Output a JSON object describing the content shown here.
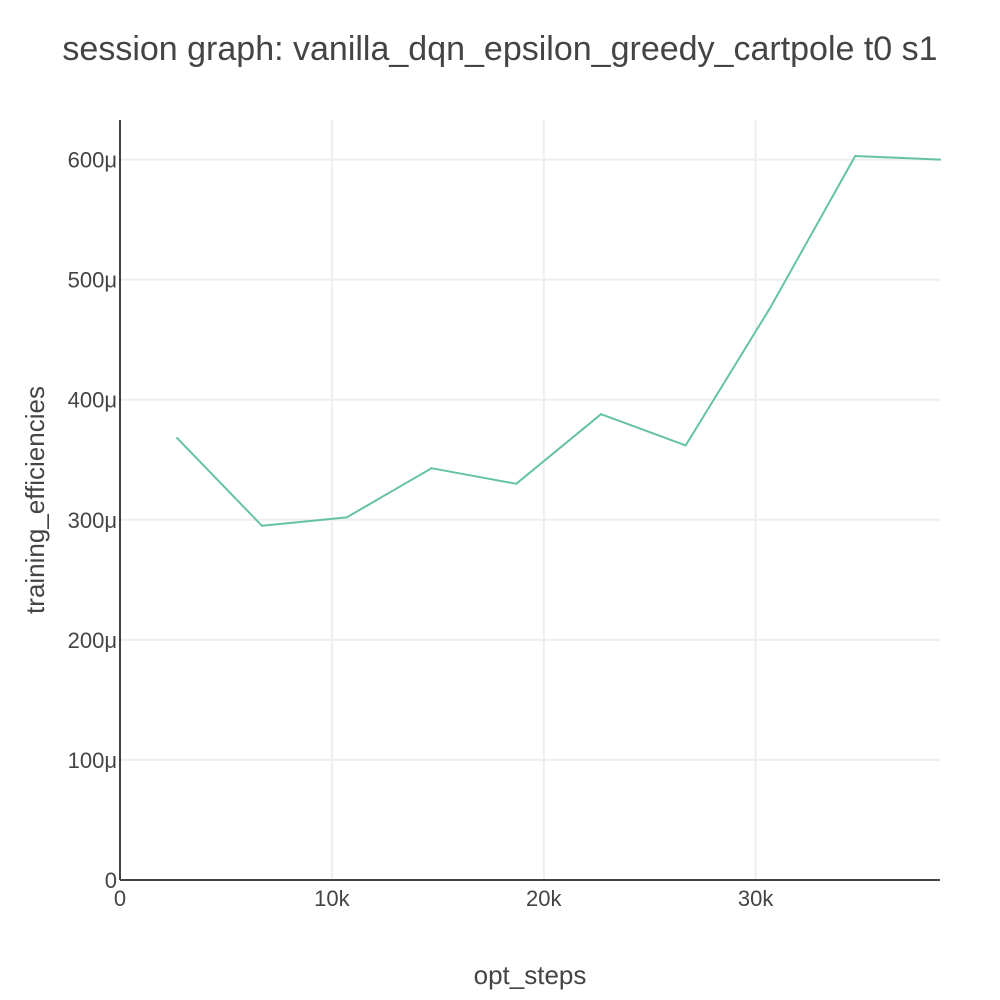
{
  "chart_data": {
    "type": "line",
    "title": "session graph: vanilla_dqn_epsilon_greedy_cartpole t0 s1",
    "xlabel": "opt_steps",
    "ylabel": "training_efficiencies",
    "xlim": [
      0,
      38700
    ],
    "ylim": [
      0,
      0.000633
    ],
    "x_ticks": [
      {
        "value": 0,
        "label": "0"
      },
      {
        "value": 10000,
        "label": "10k"
      },
      {
        "value": 20000,
        "label": "20k"
      },
      {
        "value": 30000,
        "label": "30k"
      }
    ],
    "y_ticks": [
      {
        "value": 0,
        "label": "0"
      },
      {
        "value": 0.0001,
        "label": "100μ"
      },
      {
        "value": 0.0002,
        "label": "200μ"
      },
      {
        "value": 0.0003,
        "label": "300μ"
      },
      {
        "value": 0.0004,
        "label": "400μ"
      },
      {
        "value": 0.0005,
        "label": "500μ"
      },
      {
        "value": 0.0006,
        "label": "600μ"
      }
    ],
    "grid": true,
    "legend": "none",
    "series": [
      {
        "color": "#66c2a5",
        "x": [
          2700,
          6700,
          10700,
          14700,
          18700,
          22700,
          26700,
          30700,
          34700,
          38700
        ],
        "y": [
          0.000368,
          0.000295,
          0.000302,
          0.000343,
          0.00033,
          0.000388,
          0.000362,
          0.000477,
          0.000603,
          0.0006
        ]
      }
    ]
  }
}
